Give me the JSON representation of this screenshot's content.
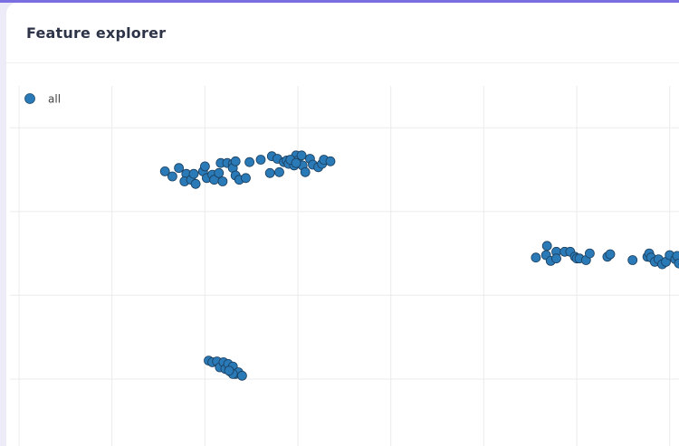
{
  "header": {
    "title": "Feature explorer"
  },
  "chart_data": {
    "type": "scatter",
    "title": "",
    "xlabel": "",
    "ylabel": "",
    "grid": true,
    "legend_position": "top-left",
    "x_range": [
      -1,
      6.1
    ],
    "y_range": [
      -0.8,
      3.5
    ],
    "series": [
      {
        "name": "all",
        "color": "#2a7ab8",
        "points": [
          {
            "x": 0.57,
            "y": 2.48
          },
          {
            "x": 0.65,
            "y": 2.42
          },
          {
            "x": 0.72,
            "y": 2.52
          },
          {
            "x": 0.8,
            "y": 2.45
          },
          {
            "x": 0.78,
            "y": 2.36
          },
          {
            "x": 0.85,
            "y": 2.38
          },
          {
            "x": 0.9,
            "y": 2.33
          },
          {
            "x": 0.88,
            "y": 2.45
          },
          {
            "x": 0.98,
            "y": 2.48
          },
          {
            "x": 1.0,
            "y": 2.54
          },
          {
            "x": 1.02,
            "y": 2.4
          },
          {
            "x": 1.08,
            "y": 2.44
          },
          {
            "x": 1.1,
            "y": 2.38
          },
          {
            "x": 1.15,
            "y": 2.46
          },
          {
            "x": 1.19,
            "y": 2.36
          },
          {
            "x": 1.17,
            "y": 2.58
          },
          {
            "x": 1.24,
            "y": 2.58
          },
          {
            "x": 1.3,
            "y": 2.57
          },
          {
            "x": 1.3,
            "y": 2.52
          },
          {
            "x": 1.33,
            "y": 2.6
          },
          {
            "x": 1.33,
            "y": 2.43
          },
          {
            "x": 1.37,
            "y": 2.38
          },
          {
            "x": 1.44,
            "y": 2.4
          },
          {
            "x": 1.48,
            "y": 2.59
          },
          {
            "x": 1.6,
            "y": 2.62
          },
          {
            "x": 1.7,
            "y": 2.46
          },
          {
            "x": 1.72,
            "y": 2.66
          },
          {
            "x": 1.78,
            "y": 2.63
          },
          {
            "x": 1.8,
            "y": 2.47
          },
          {
            "x": 1.85,
            "y": 2.59
          },
          {
            "x": 1.88,
            "y": 2.61
          },
          {
            "x": 1.9,
            "y": 2.57
          },
          {
            "x": 1.96,
            "y": 2.55
          },
          {
            "x": 1.98,
            "y": 2.67
          },
          {
            "x": 2.0,
            "y": 2.61
          },
          {
            "x": 2.04,
            "y": 2.67
          },
          {
            "x": 2.05,
            "y": 2.55
          },
          {
            "x": 2.08,
            "y": 2.47
          },
          {
            "x": 2.13,
            "y": 2.63
          },
          {
            "x": 2.16,
            "y": 2.56
          },
          {
            "x": 2.22,
            "y": 2.53
          },
          {
            "x": 2.26,
            "y": 2.57
          },
          {
            "x": 2.28,
            "y": 2.62
          },
          {
            "x": 2.35,
            "y": 2.6
          },
          {
            "x": 1.92,
            "y": 2.62
          },
          {
            "x": 1.98,
            "y": 2.58
          },
          {
            "x": 4.56,
            "y": 1.45
          },
          {
            "x": 4.67,
            "y": 1.48
          },
          {
            "x": 4.68,
            "y": 1.59
          },
          {
            "x": 4.72,
            "y": 1.41
          },
          {
            "x": 4.78,
            "y": 1.52
          },
          {
            "x": 4.78,
            "y": 1.44
          },
          {
            "x": 4.87,
            "y": 1.52
          },
          {
            "x": 4.93,
            "y": 1.52
          },
          {
            "x": 4.98,
            "y": 1.46
          },
          {
            "x": 5.0,
            "y": 1.44
          },
          {
            "x": 5.03,
            "y": 1.44
          },
          {
            "x": 5.1,
            "y": 1.42
          },
          {
            "x": 5.14,
            "y": 1.5
          },
          {
            "x": 5.33,
            "y": 1.46
          },
          {
            "x": 5.36,
            "y": 1.49
          },
          {
            "x": 5.6,
            "y": 1.42
          },
          {
            "x": 5.76,
            "y": 1.46
          },
          {
            "x": 5.78,
            "y": 1.5
          },
          {
            "x": 5.8,
            "y": 1.45
          },
          {
            "x": 5.84,
            "y": 1.4
          },
          {
            "x": 5.88,
            "y": 1.43
          },
          {
            "x": 5.92,
            "y": 1.37
          },
          {
            "x": 5.96,
            "y": 1.4
          },
          {
            "x": 6.0,
            "y": 1.48
          },
          {
            "x": 6.06,
            "y": 1.43
          },
          {
            "x": 6.08,
            "y": 1.47
          },
          {
            "x": 6.1,
            "y": 1.38
          },
          {
            "x": 6.15,
            "y": 1.37
          },
          {
            "x": 6.17,
            "y": 1.33
          },
          {
            "x": 6.2,
            "y": 1.4
          },
          {
            "x": 6.25,
            "y": 1.43
          },
          {
            "x": 6.32,
            "y": 1.44
          },
          {
            "x": 6.35,
            "y": 1.34
          },
          {
            "x": 6.38,
            "y": 1.42
          },
          {
            "x": 1.04,
            "y": 0.22
          },
          {
            "x": 1.08,
            "y": 0.2
          },
          {
            "x": 1.13,
            "y": 0.21
          },
          {
            "x": 1.16,
            "y": 0.14
          },
          {
            "x": 1.2,
            "y": 0.2
          },
          {
            "x": 1.22,
            "y": 0.12
          },
          {
            "x": 1.25,
            "y": 0.18
          },
          {
            "x": 1.27,
            "y": 0.09
          },
          {
            "x": 1.3,
            "y": 0.15
          },
          {
            "x": 1.33,
            "y": 0.06
          },
          {
            "x": 1.36,
            "y": 0.08
          },
          {
            "x": 1.4,
            "y": 0.04
          },
          {
            "x": 1.3,
            "y": 0.06
          },
          {
            "x": 1.26,
            "y": 0.1
          }
        ]
      }
    ]
  }
}
